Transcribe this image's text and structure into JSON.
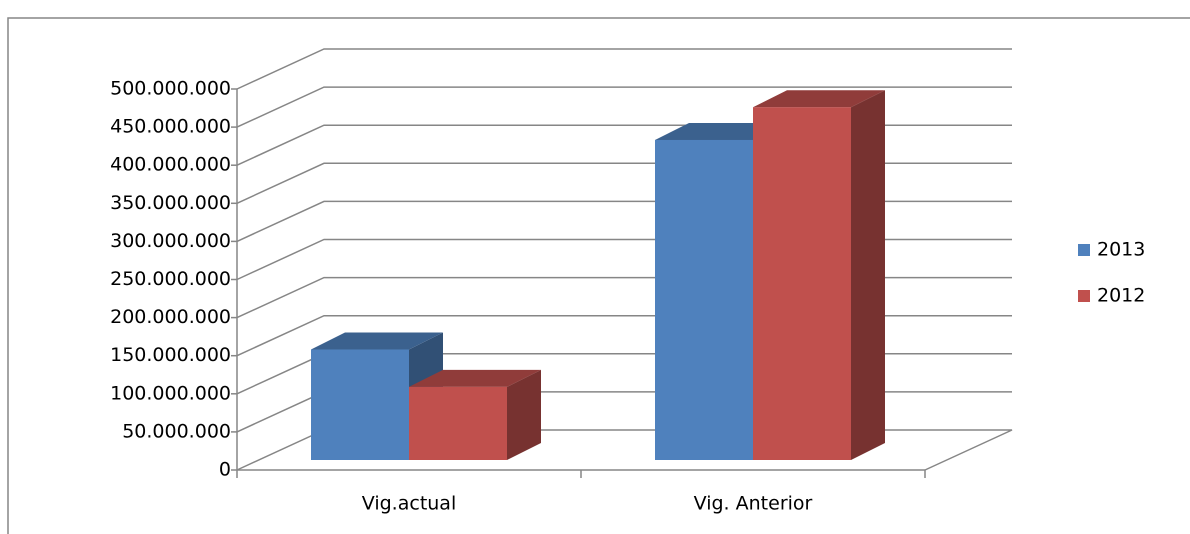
{
  "chart_data": {
    "type": "bar3d",
    "categories": [
      "Vig.actual",
      "Vig. Anterior"
    ],
    "series": [
      {
        "name": "2013",
        "color": "#4f81bd",
        "values": [
          145000000,
          420000000
        ]
      },
      {
        "name": "2012",
        "color": "#c0504d",
        "values": [
          96000000,
          463000000
        ]
      }
    ],
    "ylim": [
      0,
      500000000
    ],
    "yticks": [
      0,
      {
        "value": 50000000,
        "label": "50.000.000"
      },
      {
        "value": 100000000,
        "label": "100.000.000"
      },
      {
        "value": 150000000,
        "label": "150.000.000"
      },
      {
        "value": 200000000,
        "label": "200.000.000"
      },
      {
        "value": 250000000,
        "label": "250.000.000"
      },
      {
        "value": 300000000,
        "label": "300.000.000"
      },
      {
        "value": 350000000,
        "label": "350.000.000"
      },
      {
        "value": 400000000,
        "label": "400.000.000"
      },
      {
        "value": 450000000,
        "label": "450.000.000"
      },
      {
        "value": 500000000,
        "label": "500.000.000"
      }
    ],
    "grid": true,
    "legend": "right"
  }
}
